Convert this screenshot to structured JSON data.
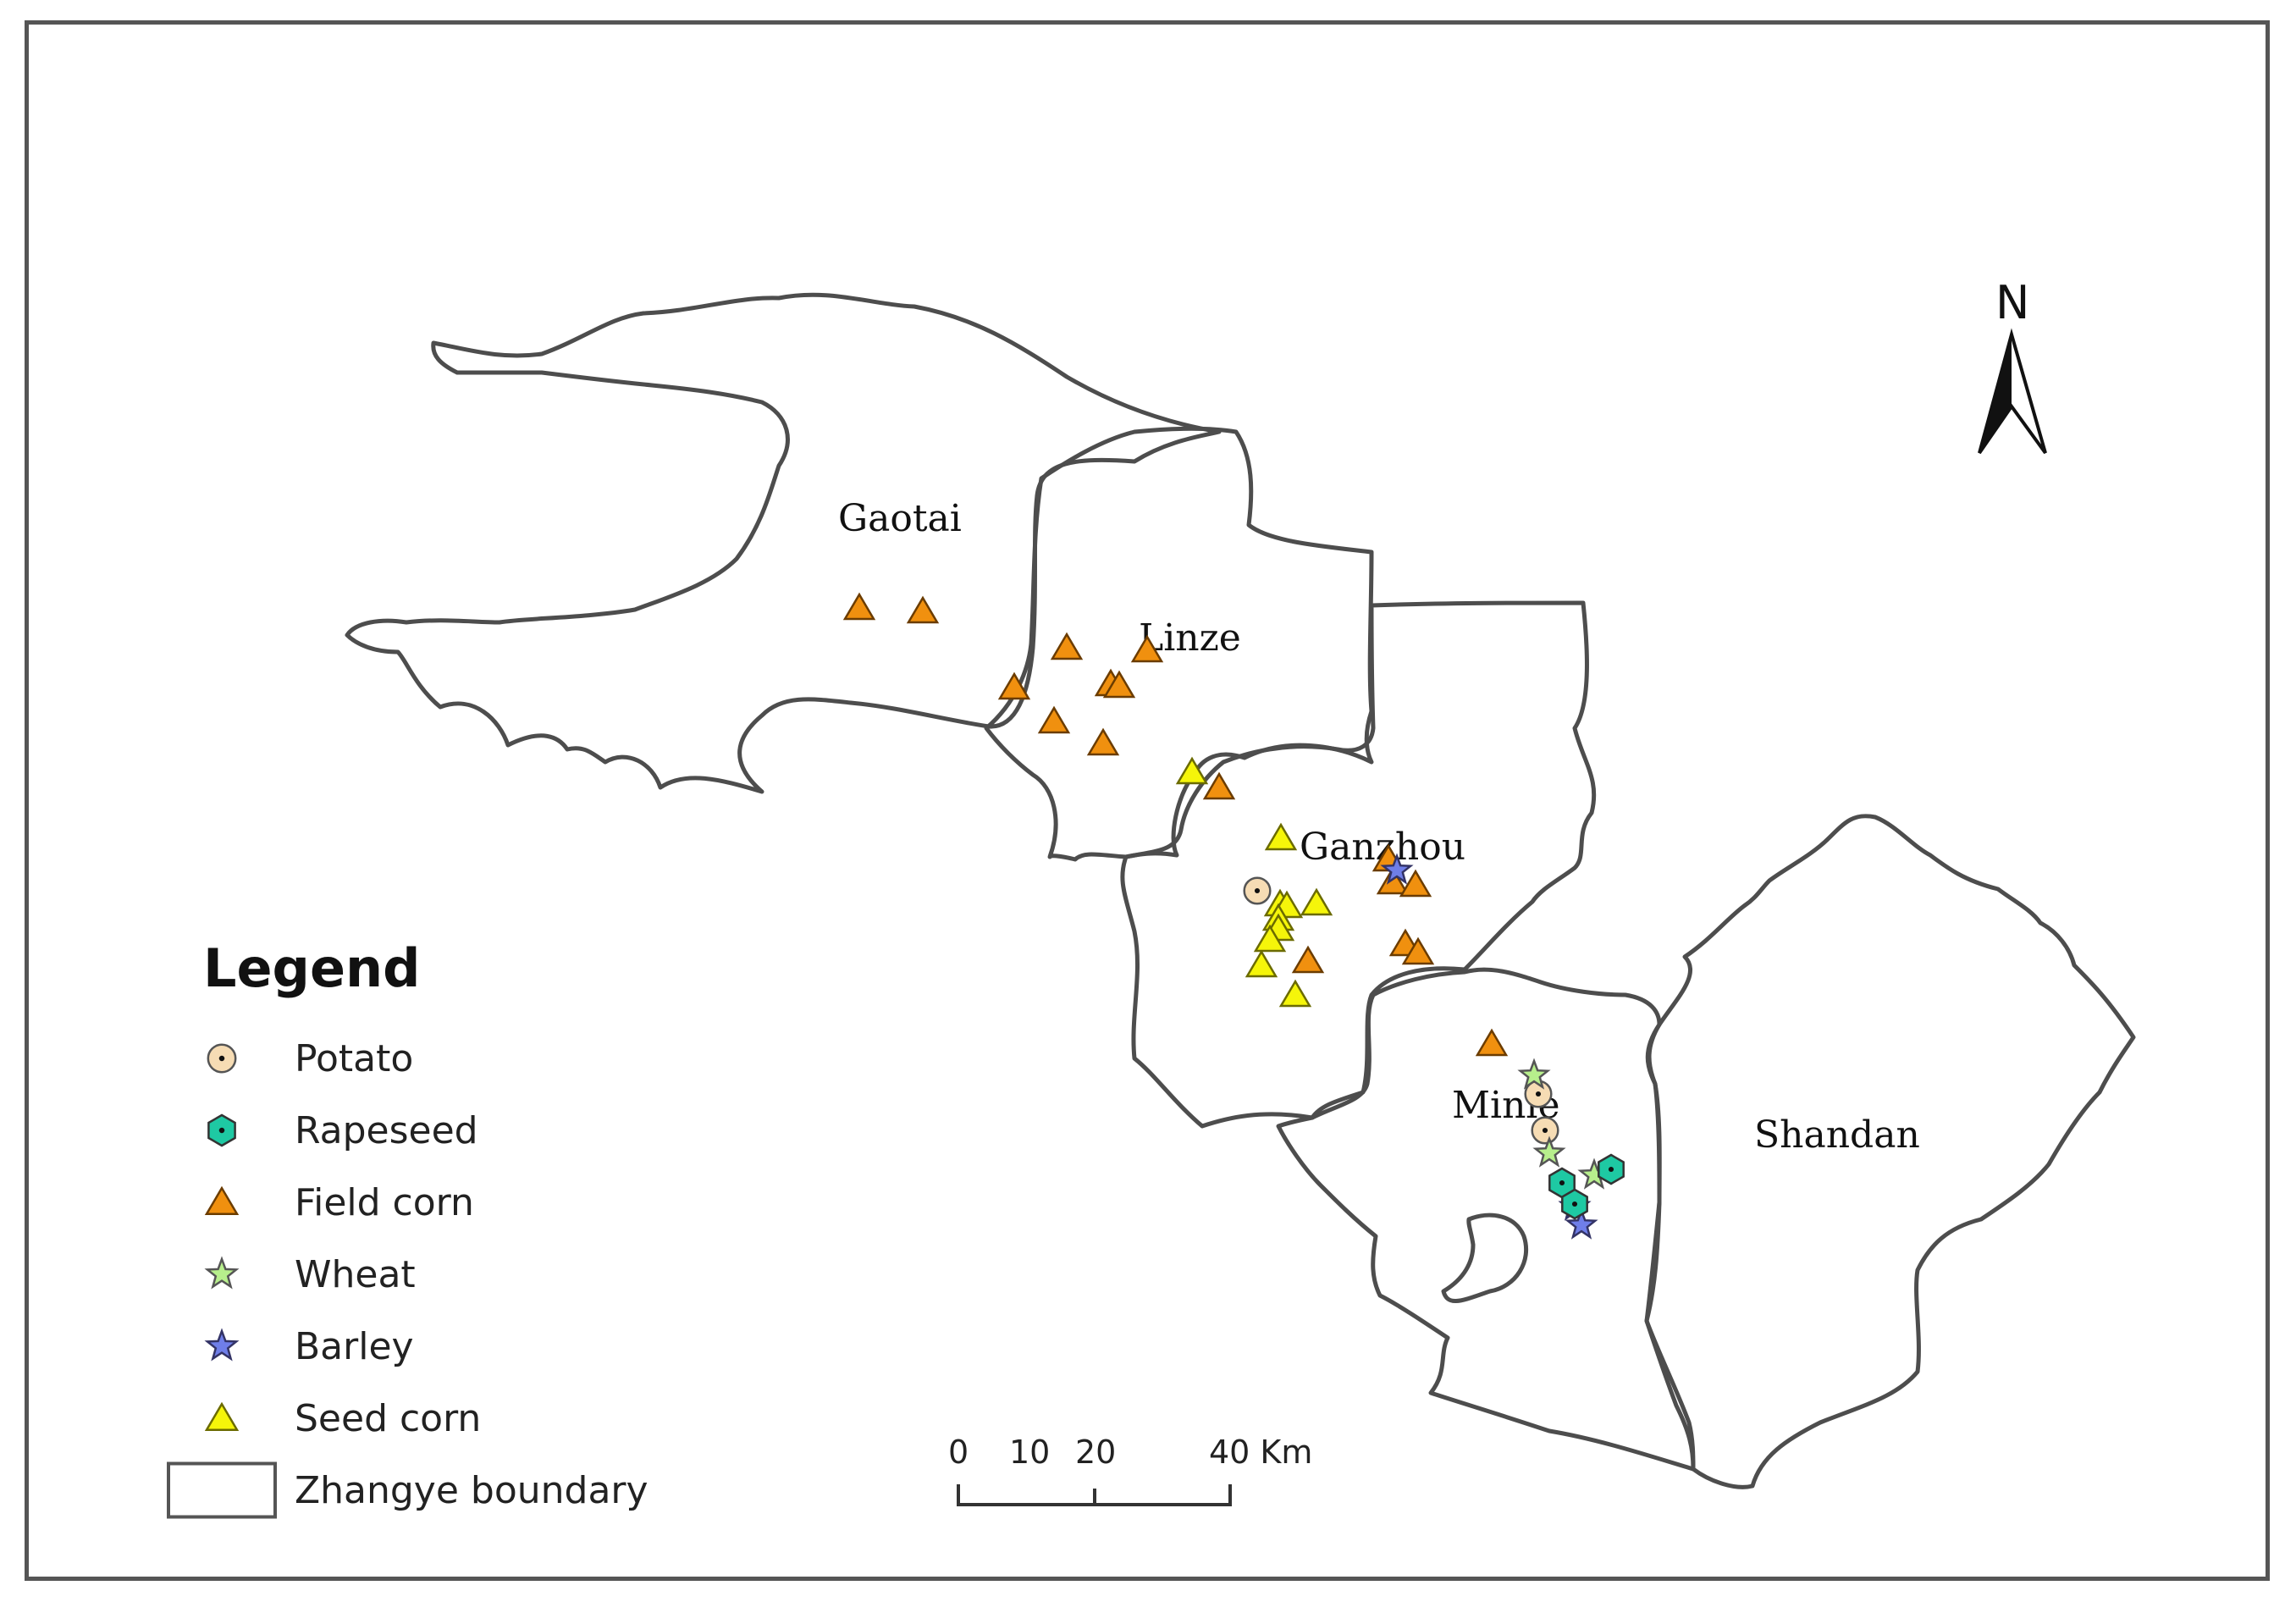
{
  "map": {
    "counties": [
      {
        "id": "gaotai",
        "name": "Gaotai"
      },
      {
        "id": "linze",
        "name": "Linze"
      },
      {
        "id": "ganzhou",
        "name": "Ganzhou"
      },
      {
        "id": "minle",
        "name": "Minle"
      },
      {
        "id": "shandan",
        "name": "Shandan"
      }
    ]
  },
  "legend": {
    "title": "Legend",
    "items": [
      {
        "key": "potato",
        "label": "Potato",
        "icon": "circle-dot-icon",
        "fill": "#f6dcb4",
        "stroke": "#555555"
      },
      {
        "key": "rapeseed",
        "label": "Rapeseed",
        "icon": "hexagon-dot-icon",
        "fill": "#1ec9a3",
        "stroke": "#333333"
      },
      {
        "key": "field_corn",
        "label": "Field corn",
        "icon": "triangle-icon",
        "fill": "#f0900f",
        "stroke": "#6b3c00"
      },
      {
        "key": "wheat",
        "label": "Wheat",
        "icon": "star-icon",
        "fill": "#b7ef8c",
        "stroke": "#555555"
      },
      {
        "key": "barley",
        "label": "Barley",
        "icon": "star-icon",
        "fill": "#6f7ee8",
        "stroke": "#333366"
      },
      {
        "key": "seed_corn",
        "label": "Seed corn",
        "icon": "triangle-icon",
        "fill": "#f5f50a",
        "stroke": "#6b6b00"
      },
      {
        "key": "boundary",
        "label": "Zhangye boundary",
        "icon": "rectangle-outline-icon",
        "fill": "#ffffff",
        "stroke": "#555555"
      }
    ]
  },
  "scale_bar": {
    "labels": [
      "0",
      "10",
      "20",
      "40 Km"
    ]
  },
  "north_arrow": {
    "label": "N"
  }
}
